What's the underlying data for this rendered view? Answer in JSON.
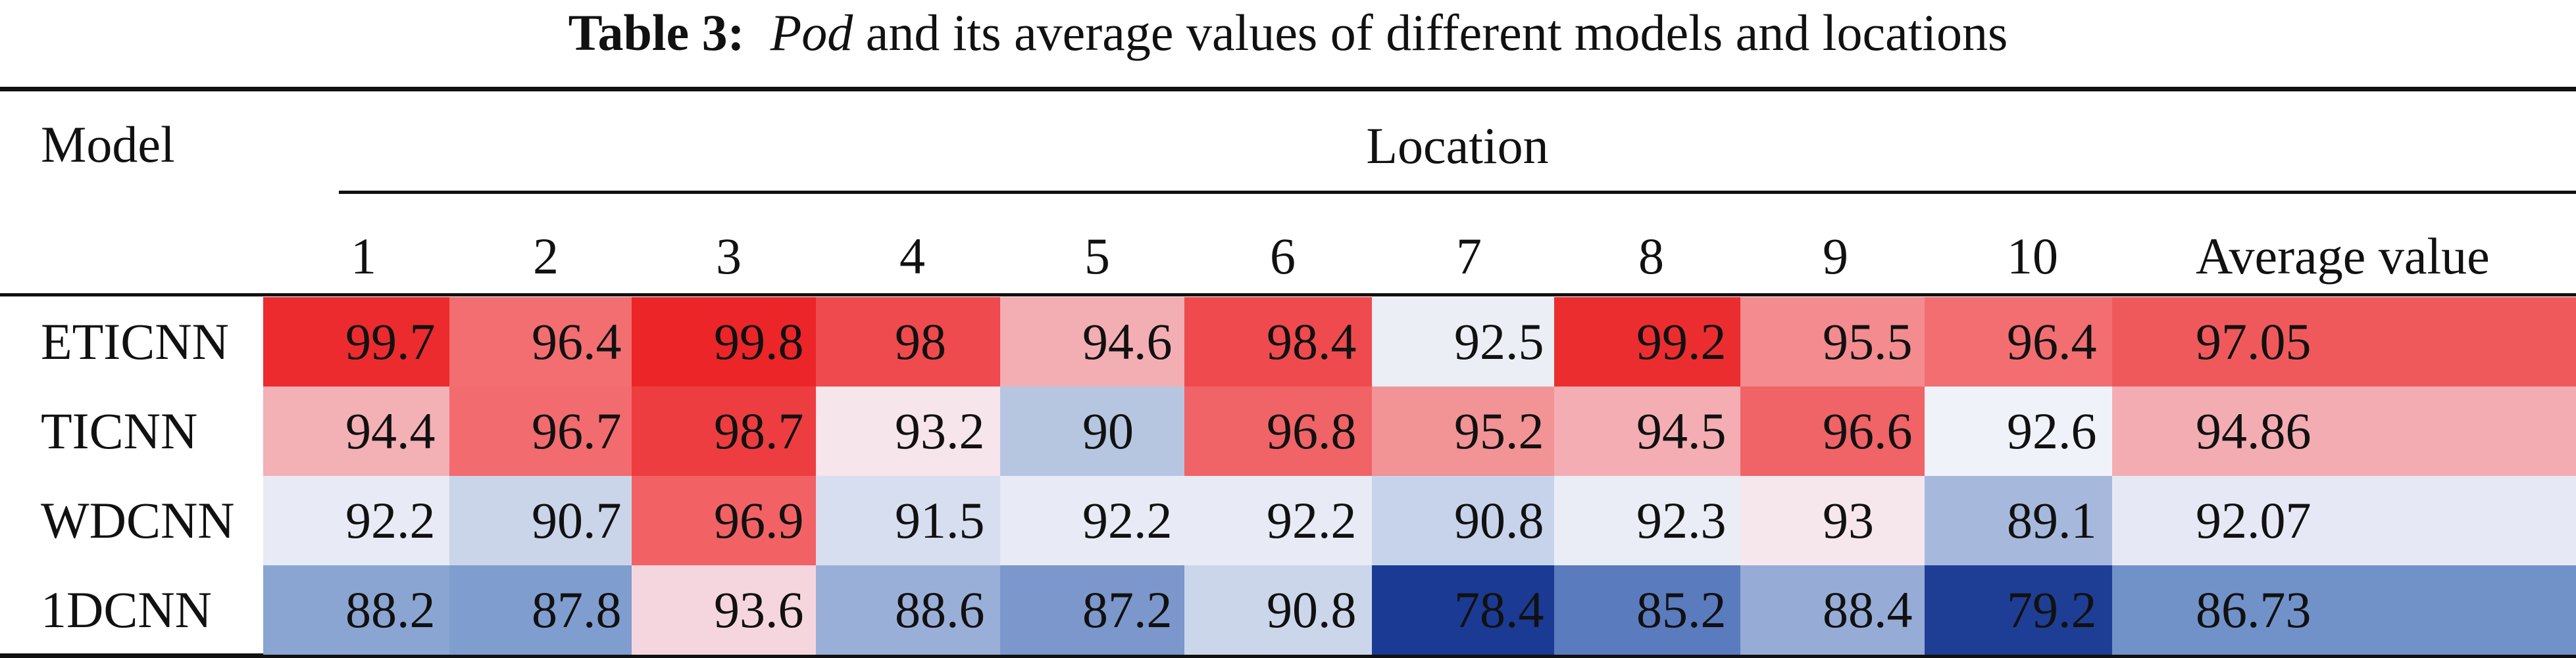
{
  "caption": {
    "label": "Table 3:",
    "italic": "Pod",
    "rest": "and its average values of different models and locations"
  },
  "header": {
    "model": "Model",
    "location": "Location",
    "columns": [
      "1",
      "2",
      "3",
      "4",
      "5",
      "6",
      "7",
      "8",
      "9",
      "10",
      "Average value"
    ]
  },
  "rows": [
    {
      "model": "ETICNN",
      "values": [
        "99.7",
        "96.4",
        "99.8",
        "98",
        "94.6",
        "98.4",
        "92.5",
        "99.2",
        "95.5",
        "96.4",
        "97.05"
      ],
      "colors": [
        "#ec2b2f",
        "#f26e71",
        "#eb2528",
        "#ef4a4d",
        "#f3aeb3",
        "#ef4a4d",
        "#eceef6",
        "#ec2d30",
        "#f38b8f",
        "#f26e71",
        "#f0595c"
      ]
    },
    {
      "model": "TICNN",
      "values": [
        "94.4",
        "96.7",
        "98.7",
        "93.2",
        "90",
        "96.8",
        "95.2",
        "94.5",
        "96.6",
        "92.6",
        "94.86"
      ],
      "colors": [
        "#f3b0b5",
        "#f26b6e",
        "#ee3d40",
        "#f6e5eb",
        "#b6c6e1",
        "#f06366",
        "#f29396",
        "#f4aeb3",
        "#f06366",
        "#eff2f9",
        "#f3adb2"
      ]
    },
    {
      "model": "WDCNN",
      "values": [
        "92.2",
        "90.7",
        "96.9",
        "91.5",
        "92.2",
        "92.2",
        "90.8",
        "92.3",
        "93",
        "89.1",
        "92.07"
      ],
      "colors": [
        "#e8ebf5",
        "#cad5ea",
        "#f26265",
        "#d6def0",
        "#e8ebf5",
        "#e8ebf5",
        "#c7d3ea",
        "#ebedf6",
        "#f6e7ed",
        "#a6b9dd",
        "#e6e9f5"
      ]
    },
    {
      "model": "1DCNN",
      "values": [
        "88.2",
        "87.8",
        "93.6",
        "88.6",
        "87.2",
        "90.8",
        "78.4",
        "85.2",
        "88.4",
        "79.2",
        "86.73"
      ],
      "colors": [
        "#8aa5d1",
        "#809dcf",
        "#f6d6de",
        "#9aafd8",
        "#7b97cb",
        "#cbd6eb",
        "#1a3a93",
        "#5b7bbf",
        "#96acd6",
        "#1e3e96",
        "#7192c9"
      ]
    }
  ]
}
